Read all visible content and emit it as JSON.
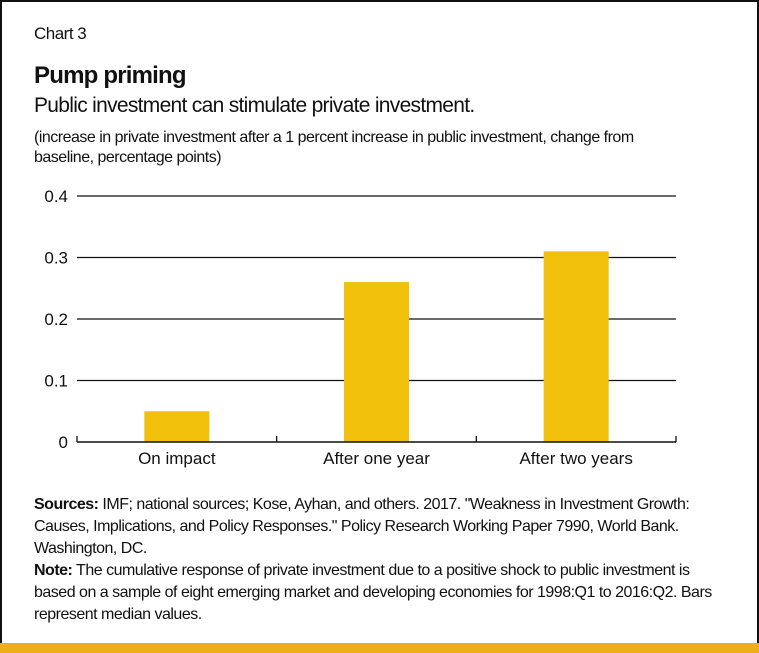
{
  "chart_label": "Chart 3",
  "colors": {
    "bar": "#F0C00A",
    "stripe": "#EDAE1A",
    "grid": "#111111"
  },
  "chart_data": {
    "type": "bar",
    "title": "Pump priming",
    "subtitle": "Public investment can stimulate private investment.",
    "ylabel": "(increase in private investment after a 1 percent increase in public investment, change from baseline, percentage points)",
    "xlabel": "",
    "categories": [
      "On impact",
      "After one year",
      "After two years"
    ],
    "values": [
      0.05,
      0.26,
      0.31
    ],
    "ylim": [
      0,
      0.4
    ],
    "yticks": [
      0,
      0.1,
      0.2,
      0.3,
      0.4
    ],
    "ytick_labels": [
      "0",
      "0.1",
      "0.2",
      "0.3",
      "0.4"
    ],
    "grid": true,
    "legend": "none"
  },
  "notes": {
    "sources_label": "Sources:",
    "sources_text": " IMF; national sources; Kose, Ayhan, and others. 2017. \"Weakness in Investment Growth: Causes, Implications, and Policy Responses.\" Policy Research Working Paper 7990, World Bank. Washington, DC.",
    "note_label": "Note:",
    "note_text": " The cumulative response of private investment due to a positive shock to public investment is based on a sample of eight emerging market and developing economies for 1998:Q1 to 2016:Q2. Bars represent median values."
  }
}
